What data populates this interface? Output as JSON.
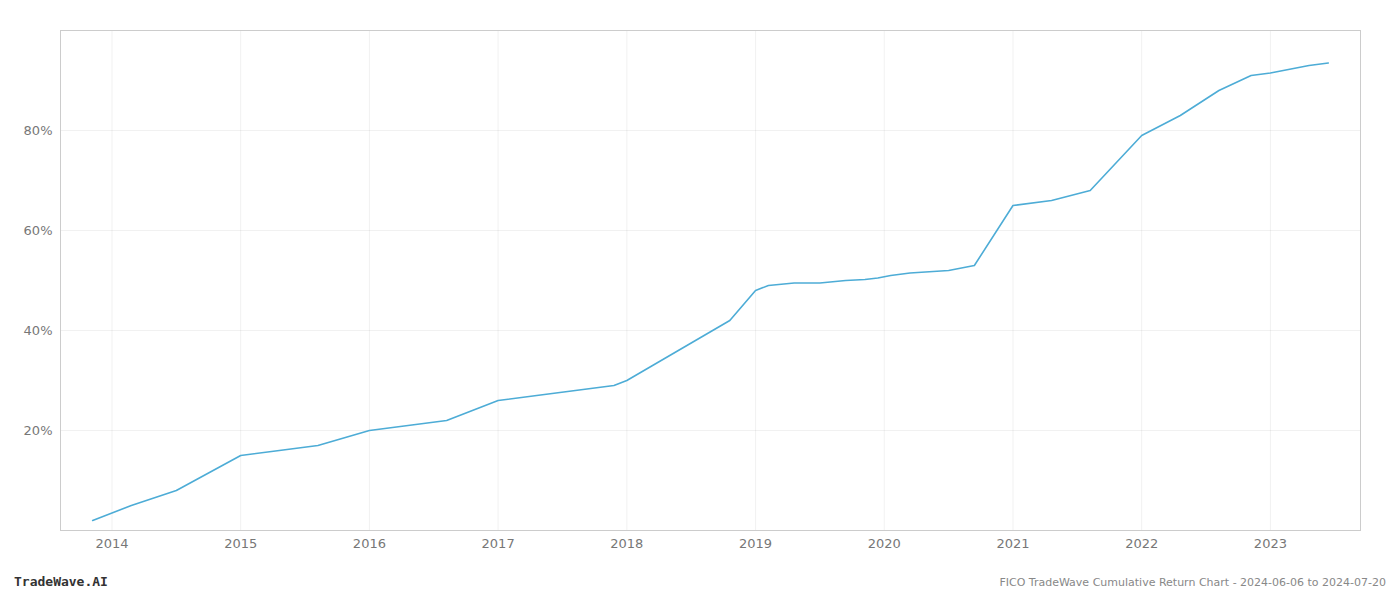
{
  "chart_data": {
    "type": "line",
    "title": "FICO TradeWave Cumulative Return Chart - 2024-06-06 to 2024-07-20",
    "annotations": [
      "TradeWave.AI"
    ],
    "x": [
      2013.85,
      2014.15,
      2014.5,
      2015.0,
      2015.3,
      2015.6,
      2016.0,
      2016.3,
      2016.6,
      2017.0,
      2017.3,
      2017.6,
      2017.9,
      2018.0,
      2018.2,
      2018.4,
      2018.6,
      2018.8,
      2019.0,
      2019.1,
      2019.3,
      2019.5,
      2019.7,
      2019.85,
      2019.95,
      2020.05,
      2020.2,
      2020.5,
      2020.7,
      2021.0,
      2021.3,
      2021.6,
      2022.0,
      2022.3,
      2022.6,
      2022.85,
      2023.0,
      2023.3,
      2023.45
    ],
    "values": [
      2,
      5,
      8,
      15,
      16,
      17,
      20,
      21,
      22,
      26,
      27,
      28,
      29,
      30,
      33,
      36,
      39,
      42,
      48,
      49,
      49.5,
      49.5,
      50,
      50.2,
      50.5,
      51,
      51.5,
      52,
      53,
      65,
      66,
      68,
      79,
      83,
      88,
      91,
      91.5,
      93,
      93.5
    ],
    "color": "#4dacd6",
    "xlim": [
      2013.6,
      2023.7
    ],
    "ylim": [
      0,
      100
    ],
    "xticks": [
      2014,
      2015,
      2016,
      2017,
      2018,
      2019,
      2020,
      2021,
      2022,
      2023
    ],
    "yticks": [
      {
        "value": 20,
        "label": "20%"
      },
      {
        "value": 40,
        "label": "40%"
      },
      {
        "value": 60,
        "label": "60%"
      },
      {
        "value": 80,
        "label": "80%"
      }
    ],
    "grid": true
  }
}
